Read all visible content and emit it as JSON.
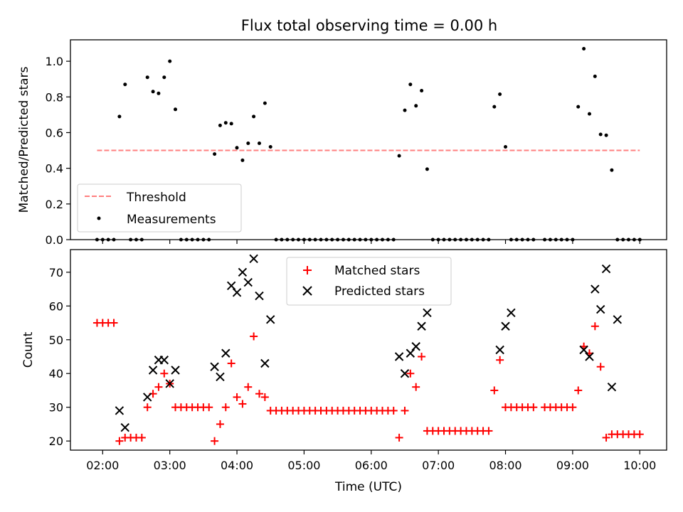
{
  "title": "Flux total observing time = 0.00 h",
  "colors": {
    "threshold": "#ff7f7f",
    "measurements": "#000000",
    "matched": "#ff0000",
    "predicted": "#000000"
  },
  "chart_data": [
    {
      "type": "scatter",
      "ylabel": "Matched/Predicted stars",
      "ylim": [
        0,
        1.12
      ],
      "xlim_hours": [
        1.52,
        10.4
      ],
      "yticks": [
        0.0,
        0.2,
        0.4,
        0.6,
        0.8,
        1.0
      ],
      "ytick_labels": [
        "0.0",
        "0.2",
        "0.4",
        "0.6",
        "0.8",
        "1.0"
      ],
      "legend_position": "lower-left",
      "series": [
        {
          "name": "Threshold",
          "style": "dashed-line",
          "x": [
            "01:55",
            "10:00"
          ],
          "y": [
            0.5,
            0.5
          ]
        },
        {
          "name": "Measurements",
          "style": "dot",
          "x": [
            "01:55",
            "02:00",
            "02:05",
            "02:10",
            "02:15",
            "02:20",
            "02:25",
            "02:30",
            "02:35",
            "02:40",
            "02:45",
            "02:50",
            "02:55",
            "03:00",
            "03:05",
            "03:10",
            "03:15",
            "03:20",
            "03:25",
            "03:30",
            "03:35",
            "03:40",
            "03:45",
            "03:50",
            "03:55",
            "04:00",
            "04:05",
            "04:10",
            "04:15",
            "04:20",
            "04:25",
            "04:30",
            "04:35",
            "04:40",
            "04:45",
            "04:50",
            "04:55",
            "05:00",
            "05:05",
            "05:10",
            "05:15",
            "05:20",
            "05:25",
            "05:30",
            "05:35",
            "05:40",
            "05:45",
            "05:50",
            "05:55",
            "06:00",
            "06:05",
            "06:10",
            "06:15",
            "06:20",
            "06:25",
            "06:30",
            "06:35",
            "06:40",
            "06:45",
            "06:50",
            "06:55",
            "07:00",
            "07:05",
            "07:10",
            "07:15",
            "07:20",
            "07:25",
            "07:30",
            "07:35",
            "07:40",
            "07:45",
            "07:50",
            "07:55",
            "08:00",
            "08:05",
            "08:10",
            "08:15",
            "08:20",
            "08:25",
            "08:35",
            "08:40",
            "08:45",
            "08:50",
            "08:55",
            "09:00",
            "09:05",
            "09:10",
            "09:15",
            "09:20",
            "09:25",
            "09:30",
            "09:35",
            "09:40",
            "09:45",
            "09:50",
            "09:55",
            "10:00"
          ],
          "y": [
            0,
            0,
            0,
            0,
            0.69,
            0.87,
            0,
            0,
            0,
            0.91,
            0.83,
            0.82,
            0.91,
            1.0,
            0.73,
            0,
            0,
            0,
            0,
            0,
            0,
            0.48,
            0.64,
            0.655,
            0.65,
            0.515,
            0.445,
            0.54,
            0.69,
            0.54,
            0.765,
            0.52,
            0,
            0,
            0,
            0,
            0,
            0,
            0,
            0,
            0,
            0,
            0,
            0,
            0,
            0,
            0,
            0,
            0,
            0,
            0,
            0,
            0,
            0,
            0.47,
            0.725,
            0.87,
            0.75,
            0.835,
            0.395,
            0,
            0,
            0,
            0,
            0,
            0,
            0,
            0,
            0,
            0,
            0,
            0.745,
            0.815,
            0.52,
            0,
            0,
            0,
            0,
            0,
            0,
            0,
            0,
            0,
            0,
            0,
            0.745,
            1.07,
            0.705,
            0.915,
            0.59,
            0.585,
            0.39,
            0,
            0,
            0,
            0,
            0
          ]
        }
      ]
    },
    {
      "type": "scatter",
      "xlabel": "Time (UTC)",
      "ylabel": "Count",
      "ylim": [
        17.3,
        76.7
      ],
      "xlim_hours": [
        1.52,
        10.4
      ],
      "xticks": [
        "02:00",
        "03:00",
        "04:00",
        "05:00",
        "06:00",
        "07:00",
        "08:00",
        "09:00",
        "10:00"
      ],
      "yticks": [
        20,
        30,
        40,
        50,
        60,
        70
      ],
      "ytick_labels": [
        "20",
        "30",
        "40",
        "50",
        "60",
        "70"
      ],
      "legend_position": "upper-center",
      "series": [
        {
          "name": "Matched stars",
          "style": "plus",
          "x": [
            "01:55",
            "02:00",
            "02:05",
            "02:10",
            "02:15",
            "02:20",
            "02:25",
            "02:30",
            "02:35",
            "02:40",
            "02:45",
            "02:50",
            "02:55",
            "03:00",
            "03:05",
            "03:10",
            "03:15",
            "03:20",
            "03:25",
            "03:30",
            "03:35",
            "03:40",
            "03:45",
            "03:50",
            "03:55",
            "04:00",
            "04:05",
            "04:10",
            "04:15",
            "04:20",
            "04:25",
            "04:30",
            "04:35",
            "04:40",
            "04:45",
            "04:50",
            "04:55",
            "05:00",
            "05:05",
            "05:10",
            "05:15",
            "05:20",
            "05:25",
            "05:30",
            "05:35",
            "05:40",
            "05:45",
            "05:50",
            "05:55",
            "06:00",
            "06:05",
            "06:10",
            "06:15",
            "06:20",
            "06:25",
            "06:30",
            "06:35",
            "06:40",
            "06:45",
            "06:50",
            "06:55",
            "07:00",
            "07:05",
            "07:10",
            "07:15",
            "07:20",
            "07:25",
            "07:30",
            "07:35",
            "07:40",
            "07:45",
            "07:50",
            "07:55",
            "08:00",
            "08:05",
            "08:10",
            "08:15",
            "08:20",
            "08:25",
            "08:35",
            "08:40",
            "08:45",
            "08:50",
            "08:55",
            "09:00",
            "09:05",
            "09:10",
            "09:15",
            "09:20",
            "09:25",
            "09:30",
            "09:35",
            "09:40",
            "09:45",
            "09:50",
            "09:55",
            "10:00"
          ],
          "y": [
            55,
            55,
            55,
            55,
            20,
            21,
            21,
            21,
            21,
            30,
            34,
            36,
            40,
            37,
            30,
            30,
            30,
            30,
            30,
            30,
            30,
            20,
            25,
            30,
            43,
            33,
            31,
            36,
            51,
            34,
            33,
            29,
            29,
            29,
            29,
            29,
            29,
            29,
            29,
            29,
            29,
            29,
            29,
            29,
            29,
            29,
            29,
            29,
            29,
            29,
            29,
            29,
            29,
            29,
            21,
            29,
            40,
            36,
            45,
            23,
            23,
            23,
            23,
            23,
            23,
            23,
            23,
            23,
            23,
            23,
            23,
            35,
            44,
            30,
            30,
            30,
            30,
            30,
            30,
            30,
            30,
            30,
            30,
            30,
            30,
            35,
            48,
            46,
            54,
            42,
            21,
            22,
            22,
            22,
            22,
            22,
            22
          ]
        },
        {
          "name": "Predicted stars",
          "style": "x",
          "x": [
            "02:15",
            "02:20",
            "02:40",
            "02:45",
            "02:50",
            "02:55",
            "03:00",
            "03:05",
            "03:40",
            "03:45",
            "03:50",
            "03:55",
            "04:00",
            "04:05",
            "04:10",
            "04:15",
            "04:20",
            "04:25",
            "04:30",
            "06:25",
            "06:30",
            "06:35",
            "06:40",
            "06:45",
            "06:50",
            "07:55",
            "08:00",
            "08:05",
            "09:10",
            "09:15",
            "09:20",
            "09:25",
            "09:30",
            "09:35",
            "09:40"
          ],
          "y": [
            29,
            24,
            33,
            41,
            44,
            44,
            37,
            41,
            42,
            39,
            46,
            66,
            64,
            70,
            67,
            74,
            63,
            43,
            56,
            45,
            40,
            46,
            48,
            54,
            58,
            47,
            54,
            58,
            47,
            45,
            65,
            59,
            71,
            36,
            56
          ]
        }
      ]
    }
  ]
}
